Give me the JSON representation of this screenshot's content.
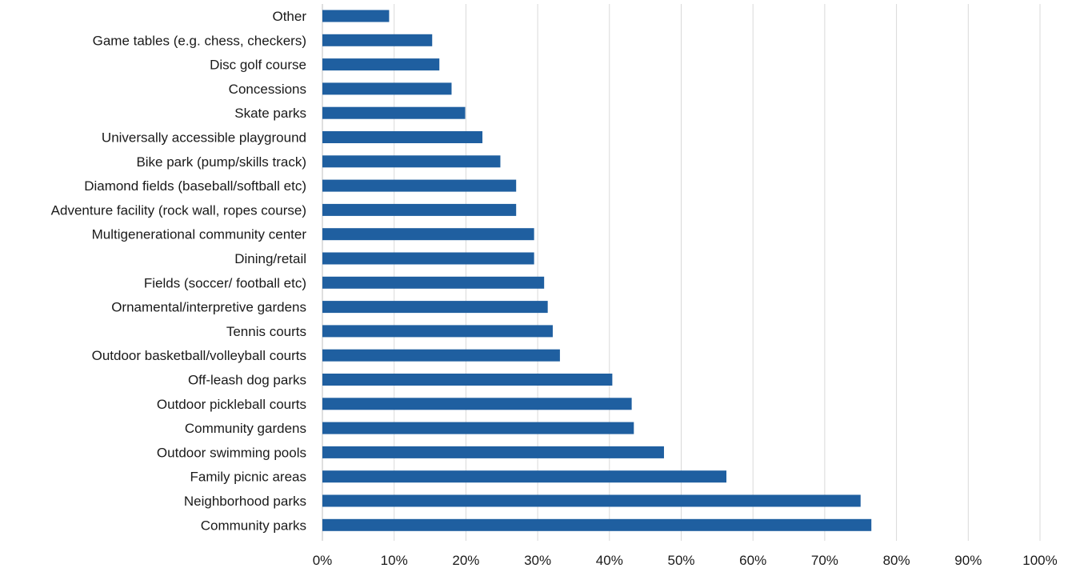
{
  "chart_data": {
    "type": "bar",
    "orientation": "horizontal",
    "categories": [
      "Other",
      "Game tables (e.g. chess, checkers)",
      "Disc golf course",
      "Concessions",
      "Skate parks",
      "Universally accessible playground",
      "Bike park (pump/skills track)",
      "Diamond fields (baseball/softball etc)",
      "Adventure facility (rock wall, ropes course)",
      "Multigenerational community center",
      "Dining/retail",
      "Fields (soccer/ football etc)",
      "Ornamental/interpretive gardens",
      "Tennis courts",
      "Outdoor basketball/volleyball courts",
      "Off-leash dog parks",
      "Outdoor pickleball courts",
      "Community gardens",
      "Outdoor swimming pools",
      "Family picnic areas",
      "Neighborhood parks",
      "Community parks"
    ],
    "values": [
      9.3,
      15.3,
      16.3,
      18.0,
      19.9,
      22.3,
      24.8,
      27.0,
      27.0,
      29.5,
      29.5,
      30.9,
      31.4,
      32.1,
      33.1,
      40.4,
      43.1,
      43.4,
      47.6,
      56.3,
      75.0,
      76.5
    ],
    "xticks": [
      "0%",
      "10%",
      "20%",
      "30%",
      "40%",
      "50%",
      "60%",
      "70%",
      "80%",
      "90%",
      "100%"
    ],
    "xlim": [
      0,
      100
    ],
    "grid": true,
    "legend": "none",
    "bar_color": "#1f5fa0",
    "title": "",
    "xlabel": "",
    "ylabel": ""
  }
}
